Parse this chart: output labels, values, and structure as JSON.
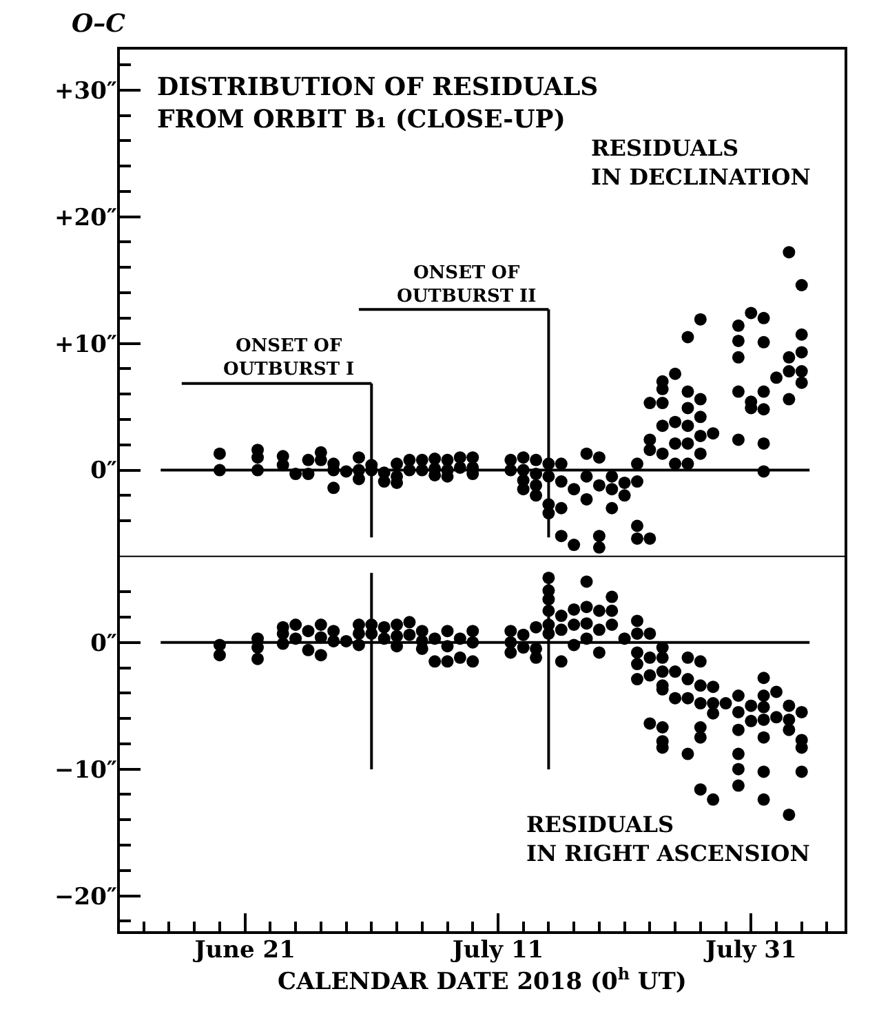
{
  "chart_data": [
    {
      "type": "scatter",
      "title": "DISTRIBUTION OF RESIDUALS\nFROM ORBIT B₁ (CLOSE-UP)",
      "ylabel": "O–C",
      "annotations": [
        "RESIDUALS\nIN DECLINATION"
      ],
      "marker": "circle",
      "color": "#000000",
      "tick_labels": "y",
      "xlim": [
        "2018-06-11",
        "2018-08-07T12:00"
      ],
      "ylim": [
        -6.8,
        33.3
      ],
      "yticks": [
        {
          "value": -4,
          "label": null
        },
        {
          "value": -2,
          "label": null
        },
        {
          "value": 0,
          "label": "0″"
        },
        {
          "value": 2,
          "label": null
        },
        {
          "value": 4,
          "label": null
        },
        {
          "value": 6,
          "label": null
        },
        {
          "value": 8,
          "label": null
        },
        {
          "value": 10,
          "label": "+10″"
        },
        {
          "value": 12,
          "label": null
        },
        {
          "value": 14,
          "label": null
        },
        {
          "value": 16,
          "label": null
        },
        {
          "value": 18,
          "label": null
        },
        {
          "value": 20,
          "label": "+20″"
        },
        {
          "value": 22,
          "label": null
        },
        {
          "value": 24,
          "label": null
        },
        {
          "value": 26,
          "label": null
        },
        {
          "value": 28,
          "label": null
        },
        {
          "value": 30,
          "label": "+30″"
        },
        {
          "value": 32,
          "label": null
        }
      ],
      "ref_lines": [
        {
          "axis": "x",
          "value": "2018-07-01",
          "label": "ONSET OF\nOUTBURST I"
        },
        {
          "axis": "x",
          "value": "2018-07-15",
          "label": "ONSET OF\nOUTBURST II"
        },
        {
          "axis": "y",
          "value": 0
        }
      ],
      "x": [
        "2018-06-19",
        "2018-06-19",
        "2018-06-22",
        "2018-06-22",
        "2018-06-22",
        "2018-06-24",
        "2018-06-24",
        "2018-06-25",
        "2018-06-26",
        "2018-06-26",
        "2018-06-27",
        "2018-06-27",
        "2018-06-28",
        "2018-06-28",
        "2018-06-28",
        "2018-06-29",
        "2018-06-30",
        "2018-06-30",
        "2018-06-30",
        "2018-07-01",
        "2018-07-01",
        "2018-07-02",
        "2018-07-02",
        "2018-07-03",
        "2018-07-03",
        "2018-07-03",
        "2018-07-04",
        "2018-07-04",
        "2018-07-05",
        "2018-07-05",
        "2018-07-06",
        "2018-07-06",
        "2018-07-06",
        "2018-07-07",
        "2018-07-07",
        "2018-07-07",
        "2018-07-08",
        "2018-07-08",
        "2018-07-09",
        "2018-07-09",
        "2018-07-09",
        "2018-07-12",
        "2018-07-12",
        "2018-07-13",
        "2018-07-13",
        "2018-07-13",
        "2018-07-13",
        "2018-07-14",
        "2018-07-14",
        "2018-07-14",
        "2018-07-14",
        "2018-07-15",
        "2018-07-15",
        "2018-07-15",
        "2018-07-15",
        "2018-07-16",
        "2018-07-16",
        "2018-07-16",
        "2018-07-16",
        "2018-07-17",
        "2018-07-17",
        "2018-07-18",
        "2018-07-18",
        "2018-07-18",
        "2018-07-19",
        "2018-07-19",
        "2018-07-19",
        "2018-07-19",
        "2018-07-20",
        "2018-07-20",
        "2018-07-20",
        "2018-07-21",
        "2018-07-21",
        "2018-07-22",
        "2018-07-22",
        "2018-07-22",
        "2018-07-22",
        "2018-07-23",
        "2018-07-23",
        "2018-07-23",
        "2018-07-23",
        "2018-07-24",
        "2018-07-24",
        "2018-07-24",
        "2018-07-24",
        "2018-07-24",
        "2018-07-25",
        "2018-07-25",
        "2018-07-25",
        "2018-07-25",
        "2018-07-26",
        "2018-07-26",
        "2018-07-26",
        "2018-07-26",
        "2018-07-26",
        "2018-07-26",
        "2018-07-27",
        "2018-07-27",
        "2018-07-27",
        "2018-07-27",
        "2018-07-27",
        "2018-07-28",
        "2018-07-30",
        "2018-07-30",
        "2018-07-30",
        "2018-07-30",
        "2018-07-30",
        "2018-07-31",
        "2018-07-31",
        "2018-07-31",
        "2018-08-01",
        "2018-08-01",
        "2018-08-01",
        "2018-08-01",
        "2018-08-01",
        "2018-08-01",
        "2018-08-02",
        "2018-08-03",
        "2018-08-03",
        "2018-08-03",
        "2018-08-03",
        "2018-08-04",
        "2018-08-04",
        "2018-08-04",
        "2018-08-04",
        "2018-08-04"
      ],
      "values": [
        1.3,
        0,
        1.6,
        1.0,
        0,
        1.1,
        0.4,
        -0.3,
        -0.3,
        0.8,
        1.4,
        0.8,
        0.5,
        0,
        -1.4,
        -0.1,
        1.0,
        0,
        -0.7,
        0.4,
        0,
        -0.2,
        -0.9,
        0.5,
        -0.5,
        -1.0,
        0.8,
        0,
        0.8,
        0,
        0.9,
        0.1,
        -0.4,
        0.8,
        0,
        -0.5,
        1.0,
        0.2,
        1.0,
        0.2,
        -0.3,
        0.8,
        0,
        1.0,
        0,
        -0.8,
        -1.5,
        0.8,
        -0.3,
        -1.2,
        -2.0,
        0.5,
        -0.5,
        -2.7,
        -3.4,
        0.5,
        -0.9,
        -3.0,
        -5.2,
        -5.9,
        -1.5,
        1.3,
        -2.3,
        -0.5,
        1.0,
        -1.2,
        -5.2,
        -6.1,
        -0.5,
        -3.0,
        -1.5,
        -1.0,
        -2.0,
        0.5,
        -0.9,
        -4.4,
        -5.4,
        1.6,
        5.3,
        2.4,
        -5.4,
        7.0,
        6.4,
        5.3,
        3.5,
        1.3,
        7.6,
        3.8,
        2.1,
        0.5,
        10.5,
        6.2,
        4.9,
        3.5,
        2.1,
        0.5,
        11.9,
        5.6,
        4.2,
        2.7,
        1.3,
        2.9,
        11.4,
        10.2,
        8.9,
        6.2,
        2.4,
        12.4,
        5.4,
        4.9,
        12.0,
        10.1,
        6.2,
        4.8,
        2.1,
        -0.1,
        7.3,
        17.2,
        8.9,
        7.8,
        5.6,
        14.6,
        10.7,
        9.3,
        7.8,
        6.9
      ]
    },
    {
      "type": "scatter",
      "xlabel": "CALENDAR DATE 2018 (0$^{h}$ UT)",
      "annotations": [
        "RESIDUALS\nIN RIGHT ASCENSION"
      ],
      "marker": "circle",
      "color": "#000000",
      "xlim": [
        "2018-06-11",
        "2018-08-07T12:00"
      ],
      "xticks": [
        {
          "value": "2018-06-13",
          "label": null
        },
        {
          "value": "2018-06-15",
          "label": null
        },
        {
          "value": "2018-06-17",
          "label": null
        },
        {
          "value": "2018-06-19",
          "label": null
        },
        {
          "value": "2018-06-21",
          "label": "June 21"
        },
        {
          "value": "2018-06-23",
          "label": null
        },
        {
          "value": "2018-06-25",
          "label": null
        },
        {
          "value": "2018-06-27",
          "label": null
        },
        {
          "value": "2018-06-29",
          "label": null
        },
        {
          "value": "2018-07-01",
          "label": null
        },
        {
          "value": "2018-07-03",
          "label": null
        },
        {
          "value": "2018-07-05",
          "label": null
        },
        {
          "value": "2018-07-07",
          "label": null
        },
        {
          "value": "2018-07-09",
          "label": null
        },
        {
          "value": "2018-07-11",
          "label": "July 11"
        },
        {
          "value": "2018-07-13",
          "label": null
        },
        {
          "value": "2018-07-15",
          "label": null
        },
        {
          "value": "2018-07-17",
          "label": null
        },
        {
          "value": "2018-07-19",
          "label": null
        },
        {
          "value": "2018-07-21",
          "label": null
        },
        {
          "value": "2018-07-23",
          "label": null
        },
        {
          "value": "2018-07-25",
          "label": null
        },
        {
          "value": "2018-07-27",
          "label": null
        },
        {
          "value": "2018-07-29",
          "label": null
        },
        {
          "value": "2018-07-31",
          "label": "July 31"
        },
        {
          "value": "2018-08-02",
          "label": null
        },
        {
          "value": "2018-08-04",
          "label": null
        },
        {
          "value": "2018-08-06",
          "label": null
        }
      ],
      "ylim": [
        -22.9,
        6.8
      ],
      "yticks": [
        {
          "value": -22,
          "label": null
        },
        {
          "value": -20,
          "label": "−20″"
        },
        {
          "value": -18,
          "label": null
        },
        {
          "value": -16,
          "label": null
        },
        {
          "value": -14,
          "label": null
        },
        {
          "value": -12,
          "label": null
        },
        {
          "value": -10,
          "label": "−10″"
        },
        {
          "value": -8,
          "label": null
        },
        {
          "value": -6,
          "label": null
        },
        {
          "value": -4,
          "label": null
        },
        {
          "value": -2,
          "label": null
        },
        {
          "value": 0,
          "label": "0″"
        },
        {
          "value": 2,
          "label": null
        },
        {
          "value": 4,
          "label": null
        }
      ],
      "ref_lines": [
        {
          "axis": "x",
          "value": "2018-07-01"
        },
        {
          "axis": "x",
          "value": "2018-07-15"
        },
        {
          "axis": "y",
          "value": 0
        }
      ],
      "x": [
        "2018-06-19",
        "2018-06-19",
        "2018-06-22",
        "2018-06-22",
        "2018-06-22",
        "2018-06-24",
        "2018-06-24",
        "2018-06-24",
        "2018-06-25",
        "2018-06-25",
        "2018-06-26",
        "2018-06-26",
        "2018-06-27",
        "2018-06-27",
        "2018-06-27",
        "2018-06-28",
        "2018-06-28",
        "2018-06-29",
        "2018-06-30",
        "2018-06-30",
        "2018-06-30",
        "2018-07-01",
        "2018-07-01",
        "2018-07-02",
        "2018-07-02",
        "2018-07-03",
        "2018-07-03",
        "2018-07-03",
        "2018-07-04",
        "2018-07-04",
        "2018-07-05",
        "2018-07-05",
        "2018-07-05",
        "2018-07-06",
        "2018-07-06",
        "2018-07-07",
        "2018-07-07",
        "2018-07-07",
        "2018-07-08",
        "2018-07-08",
        "2018-07-09",
        "2018-07-09",
        "2018-07-09",
        "2018-07-12",
        "2018-07-12",
        "2018-07-12",
        "2018-07-13",
        "2018-07-13",
        "2018-07-14",
        "2018-07-14",
        "2018-07-14",
        "2018-07-15",
        "2018-07-15",
        "2018-07-15",
        "2018-07-15",
        "2018-07-15",
        "2018-07-15",
        "2018-07-16",
        "2018-07-16",
        "2018-07-16",
        "2018-07-17",
        "2018-07-17",
        "2018-07-17",
        "2018-07-18",
        "2018-07-18",
        "2018-07-18",
        "2018-07-18",
        "2018-07-19",
        "2018-07-19",
        "2018-07-19",
        "2018-07-20",
        "2018-07-20",
        "2018-07-20",
        "2018-07-21",
        "2018-07-22",
        "2018-07-22",
        "2018-07-22",
        "2018-07-22",
        "2018-07-22",
        "2018-07-23",
        "2018-07-23",
        "2018-07-23",
        "2018-07-23",
        "2018-07-24",
        "2018-07-24",
        "2018-07-24",
        "2018-07-24",
        "2018-07-24",
        "2018-07-24",
        "2018-07-24",
        "2018-07-24",
        "2018-07-25",
        "2018-07-25",
        "2018-07-26",
        "2018-07-26",
        "2018-07-26",
        "2018-07-26",
        "2018-07-27",
        "2018-07-27",
        "2018-07-27",
        "2018-07-27",
        "2018-07-27",
        "2018-07-27",
        "2018-07-28",
        "2018-07-28",
        "2018-07-28",
        "2018-07-28",
        "2018-07-29",
        "2018-07-30",
        "2018-07-30",
        "2018-07-30",
        "2018-07-30",
        "2018-07-30",
        "2018-07-30",
        "2018-07-31",
        "2018-07-31",
        "2018-08-01",
        "2018-08-01",
        "2018-08-01",
        "2018-08-01",
        "2018-08-01",
        "2018-08-01",
        "2018-08-01",
        "2018-08-02",
        "2018-08-02",
        "2018-08-03",
        "2018-08-03",
        "2018-08-03",
        "2018-08-03",
        "2018-08-04",
        "2018-08-04",
        "2018-08-04",
        "2018-08-04"
      ],
      "values": [
        -0.2,
        -1.0,
        0.3,
        -0.4,
        -1.3,
        1.2,
        0.7,
        -0.1,
        1.4,
        0.3,
        0.9,
        -0.6,
        1.4,
        0.4,
        -1.0,
        0.9,
        0.1,
        0.1,
        1.4,
        0.7,
        -0.2,
        1.4,
        0.7,
        1.2,
        0.3,
        1.4,
        0.5,
        -0.3,
        1.6,
        0.6,
        0.9,
        0.1,
        -0.5,
        0.3,
        -1.5,
        0.9,
        -0.3,
        -1.5,
        0.3,
        -1.2,
        0.9,
        0,
        -1.5,
        0.9,
        0,
        -0.8,
        0.6,
        -0.4,
        1.2,
        -0.5,
        -1.2,
        5.1,
        4.1,
        3.4,
        2.5,
        1.4,
        0.7,
        2.1,
        1.0,
        -1.5,
        2.6,
        1.4,
        -0.2,
        4.8,
        2.8,
        1.5,
        0.3,
        2.5,
        -0.8,
        1.0,
        3.6,
        2.5,
        1.4,
        0.3,
        1.7,
        -0.8,
        -1.7,
        -2.9,
        0.7,
        0.7,
        -1.2,
        -2.6,
        -6.4,
        -0.4,
        -2.3,
        -3.4,
        -1.2,
        -3.7,
        -6.7,
        -7.8,
        -8.3,
        -2.3,
        -4.4,
        -1.2,
        -2.9,
        -4.4,
        -8.8,
        -1.5,
        -3.4,
        -4.8,
        -6.7,
        -7.5,
        -11.6,
        -3.5,
        -4.8,
        -5.6,
        -12.4,
        -4.8,
        -4.2,
        -5.5,
        -6.9,
        -8.8,
        -10.0,
        -11.3,
        -5.0,
        -6.2,
        -2.8,
        -4.2,
        -5.1,
        -6.1,
        -7.5,
        -10.2,
        -12.4,
        -3.9,
        -5.9,
        -5.0,
        -6.1,
        -6.9,
        -13.6,
        -5.5,
        -7.7,
        -8.3,
        -10.2
      ]
    }
  ]
}
